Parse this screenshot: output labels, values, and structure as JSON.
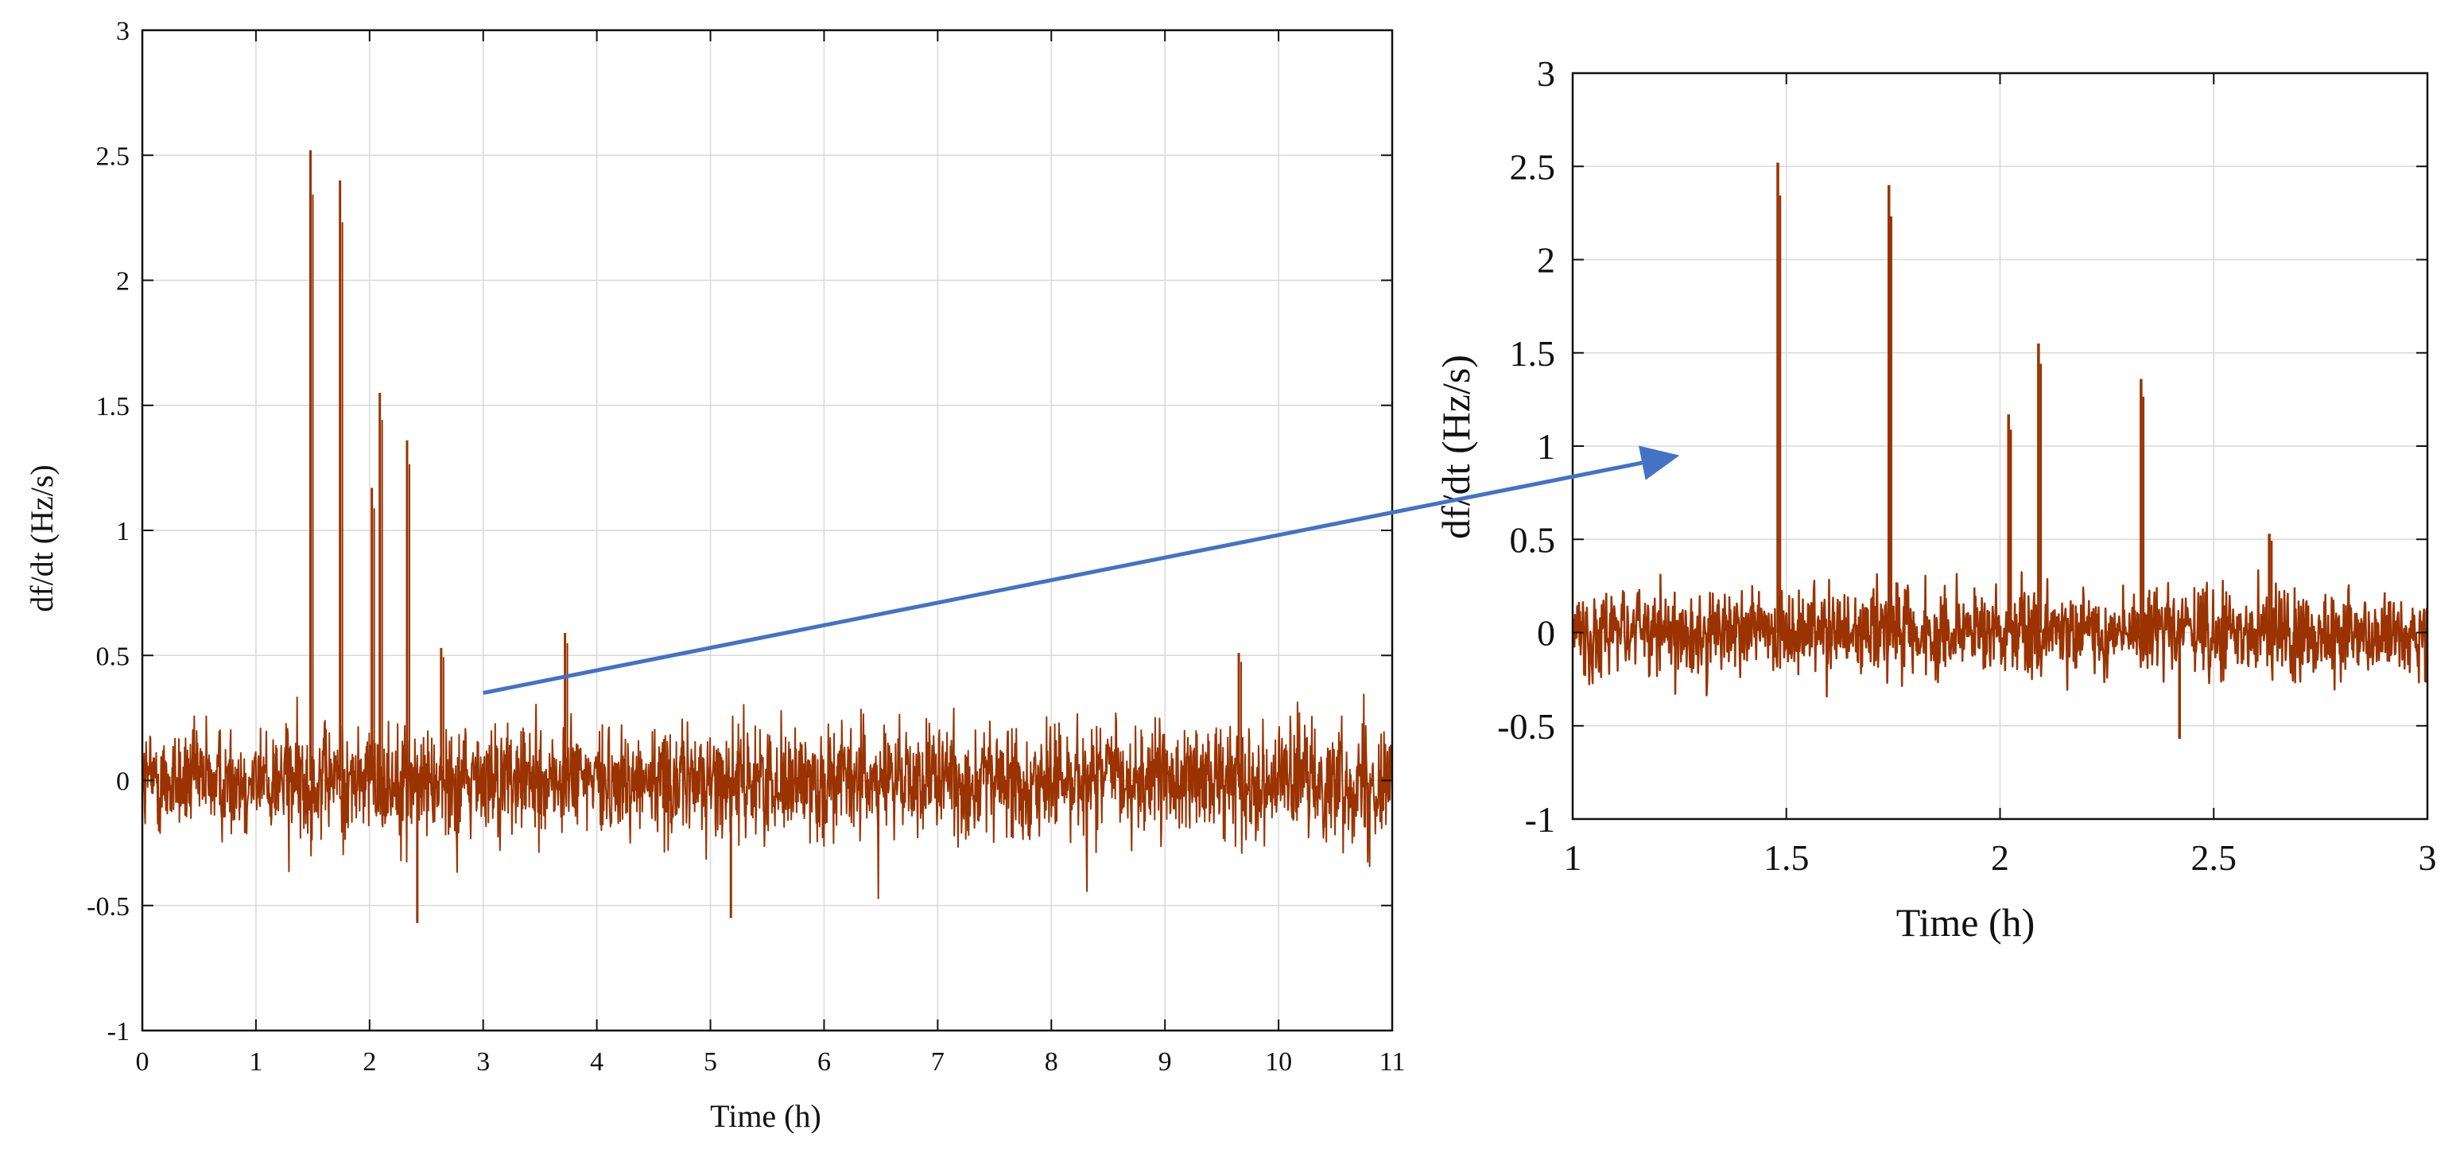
{
  "colors": {
    "signal": "#9a3300",
    "arrow": "#4472c4",
    "grid": "#d9d9d9",
    "axis": "#111111"
  },
  "chart_data": [
    {
      "id": "overview",
      "type": "line",
      "title": "",
      "xlabel": "Time (h)",
      "ylabel": "df/dt (Hz/s)",
      "xlim": [
        0,
        11
      ],
      "ylim": [
        -1,
        3
      ],
      "xticks": [
        "0",
        "1",
        "2",
        "3",
        "4",
        "5",
        "6",
        "7",
        "8",
        "9",
        "10",
        "11"
      ],
      "yticks": [
        "-1",
        "-0.5",
        "0",
        "0.5",
        "1",
        "1.5",
        "2",
        "2.5",
        "3"
      ],
      "grid": true,
      "noise": {
        "mean": 0,
        "band": [
          -0.3,
          0.3
        ],
        "extreme_low": -0.57,
        "samples": 2600
      },
      "spikes": [
        {
          "x": 1.48,
          "y": 2.52
        },
        {
          "x": 1.74,
          "y": 2.4
        },
        {
          "x": 2.02,
          "y": 1.17
        },
        {
          "x": 2.09,
          "y": 1.55
        },
        {
          "x": 2.33,
          "y": 1.36
        },
        {
          "x": 2.63,
          "y": 0.53
        },
        {
          "x": 3.72,
          "y": 0.59
        },
        {
          "x": 9.65,
          "y": 0.51
        }
      ],
      "dips": [
        {
          "x": 2.42,
          "y": -0.57
        },
        {
          "x": 5.18,
          "y": -0.55
        }
      ]
    },
    {
      "id": "zoom",
      "type": "line",
      "title": "",
      "xlabel": "Time (h)",
      "ylabel": "df/dt (Hz/s)",
      "xlim": [
        1,
        3
      ],
      "ylim": [
        -1,
        3
      ],
      "xticks": [
        "1",
        "1.5",
        "2",
        "2.5",
        "3"
      ],
      "yticks": [
        "-1",
        "-0.5",
        "0",
        "0.5",
        "1",
        "1.5",
        "2",
        "2.5",
        "3"
      ],
      "grid": true,
      "noise": {
        "mean": 0,
        "band": [
          -0.3,
          0.3
        ],
        "extreme_low": -0.57,
        "samples": 1500
      },
      "spikes": [
        {
          "x": 1.48,
          "y": 2.52
        },
        {
          "x": 1.74,
          "y": 2.4
        },
        {
          "x": 2.02,
          "y": 1.17
        },
        {
          "x": 2.09,
          "y": 1.55
        },
        {
          "x": 2.33,
          "y": 1.36
        },
        {
          "x": 2.63,
          "y": 0.53
        }
      ],
      "dips": [
        {
          "x": 2.42,
          "y": -0.57
        }
      ]
    }
  ],
  "annotation": {
    "type": "zoom-arrow",
    "from_chart": "overview",
    "from_point": {
      "x": 3.0,
      "y": 0.35
    },
    "to_chart": "zoom",
    "to_point": {
      "x": 1.25,
      "y": 0.95
    }
  }
}
